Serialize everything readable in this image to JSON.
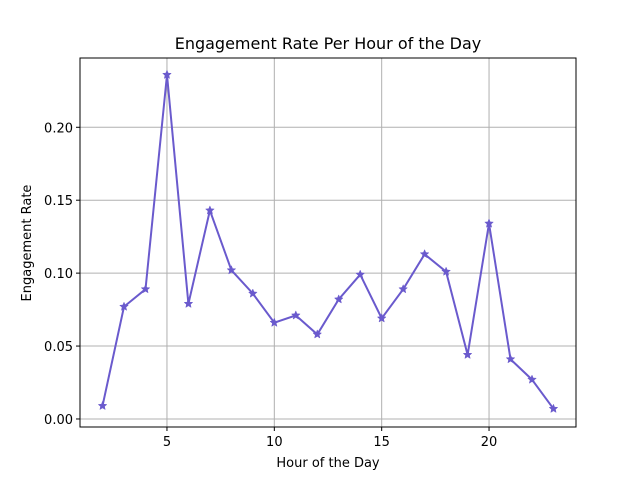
{
  "chart_data": {
    "type": "line",
    "title": "Engagement Rate Per Hour of the Day",
    "xlabel": "Hour of the Day",
    "ylabel": "Engagement Rate",
    "x": [
      2,
      3,
      4,
      5,
      6,
      7,
      8,
      9,
      10,
      11,
      12,
      13,
      14,
      15,
      16,
      17,
      18,
      19,
      20,
      21,
      22,
      23
    ],
    "values": [
      0.009,
      0.077,
      0.089,
      0.236,
      0.079,
      0.143,
      0.102,
      0.086,
      0.066,
      0.071,
      0.058,
      0.082,
      0.099,
      0.069,
      0.089,
      0.113,
      0.101,
      0.044,
      0.134,
      0.041,
      0.027,
      0.007
    ],
    "xticks": [
      5,
      10,
      15,
      20
    ],
    "xtick_labels": [
      "5",
      "10",
      "15",
      "20"
    ],
    "yticks": [
      0.0,
      0.05,
      0.1,
      0.15,
      0.2
    ],
    "ytick_labels": [
      "0.00",
      "0.05",
      "0.10",
      "0.15",
      "0.20"
    ],
    "xlim": [
      0.95,
      24.05
    ],
    "ylim": [
      -0.0055,
      0.2475
    ],
    "grid": true,
    "marker": "star",
    "color": "#6a5acd",
    "legend": null
  }
}
